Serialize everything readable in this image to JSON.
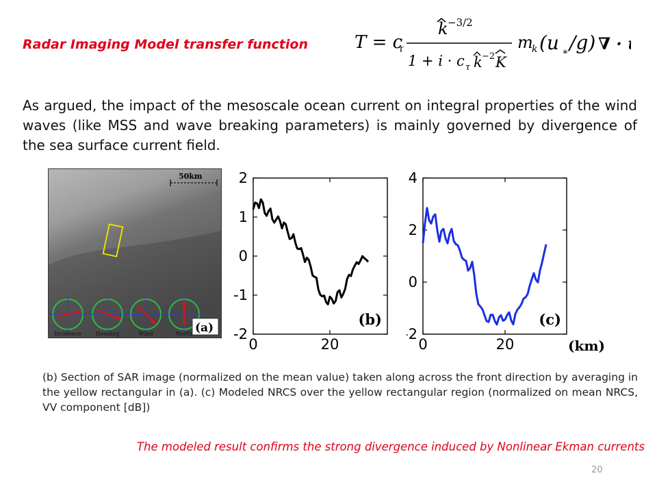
{
  "slide": {
    "title": "Radar Imaging Model  transfer function",
    "formula_lhs": "T = c",
    "formula_lhs_sub": "τ",
    "formula_num_base": "k",
    "formula_num_exp": "−3/2",
    "formula_den_a": "1 + i · c",
    "formula_den_sub": "τ",
    "formula_den_k": "k",
    "formula_den_exp": "−2",
    "formula_den_K": "K",
    "formula_rhs_m": "m",
    "formula_rhs_m_sub": "k",
    "formula_rhs_paren": "(u",
    "formula_rhs_star": "∗",
    "formula_rhs_g": "/g)",
    "formula_rhs_div": "∇ · u",
    "paragraph": "As argued, the impact of the mesoscale ocean current on integral properties of the wind waves (like MSS and wave breaking parameters) is mainly governed by divergence of the sea surface current field.",
    "caption": "(b) Section of SAR image (normalized on the mean value) taken along across the front direction by averaging in the yellow rectangular in (a). (c) Modeled NRCS over the yellow rectangular region (normalized on mean NRCS, VV component [dB])",
    "conclusion": "The modeled result confirms the strong divergence induced by Nonlinear Ekman currents",
    "page_number": "20"
  },
  "panel_a": {
    "scale_label": "50km",
    "panel_label": "(a)",
    "compass_labels": [
      "Incidence",
      "Heading",
      "Wind",
      "North"
    ],
    "colors": {
      "rectangle": "#f2e600",
      "compass_ring": "#2fb84a",
      "compass_axes": "#2b3fd6",
      "arrow": "#d8141c"
    }
  },
  "chart_data": [
    {
      "type": "line",
      "panel_label": "(b)",
      "xlabel": "",
      "ylabel": "",
      "xlim": [
        0,
        35
      ],
      "ylim": [
        -2,
        2
      ],
      "xticks": [
        0,
        20
      ],
      "yticks": [
        2,
        1,
        0,
        -1,
        -2
      ],
      "series": [
        {
          "color": "#000000",
          "x": [
            0,
            1,
            2,
            3,
            4,
            5,
            6,
            7,
            8,
            9,
            10,
            11,
            12,
            13,
            14,
            15,
            16,
            17,
            18,
            19,
            20,
            21,
            22,
            23,
            24,
            25,
            26,
            27,
            28,
            29,
            30
          ],
          "y": [
            1.2,
            1.3,
            1.4,
            1.1,
            1.2,
            1.0,
            0.95,
            0.85,
            0.8,
            0.6,
            0.5,
            0.4,
            0.2,
            0.0,
            -0.1,
            -0.3,
            -0.5,
            -0.8,
            -1.0,
            -1.2,
            -1.1,
            -1.25,
            -0.9,
            -1.0,
            -0.8,
            -0.5,
            -0.4,
            -0.2,
            -0.1,
            0.0,
            -0.1
          ]
        }
      ]
    },
    {
      "type": "line",
      "panel_label": "(c)",
      "xlabel": "(km)",
      "ylabel": "",
      "xlim": [
        0,
        35
      ],
      "ylim": [
        -2,
        4
      ],
      "xticks": [
        0,
        20
      ],
      "yticks": [
        4,
        2,
        0,
        -2
      ],
      "series": [
        {
          "color": "#1a2fe0",
          "x": [
            0,
            1,
            2,
            3,
            4,
            5,
            6,
            7,
            8,
            9,
            10,
            11,
            12,
            13,
            14,
            15,
            16,
            17,
            18,
            19,
            20,
            21,
            22,
            23,
            24,
            25,
            26,
            27,
            28,
            29,
            30
          ],
          "y": [
            1.5,
            2.8,
            2.2,
            2.6,
            1.6,
            2.1,
            1.5,
            2.0,
            1.4,
            1.2,
            0.9,
            0.5,
            0.8,
            -0.5,
            -1.0,
            -1.3,
            -1.5,
            -1.2,
            -1.6,
            -1.3,
            -1.5,
            -1.2,
            -1.6,
            -1.0,
            -0.8,
            -0.6,
            -0.2,
            0.3,
            0.0,
            0.8,
            1.5
          ]
        }
      ]
    }
  ]
}
